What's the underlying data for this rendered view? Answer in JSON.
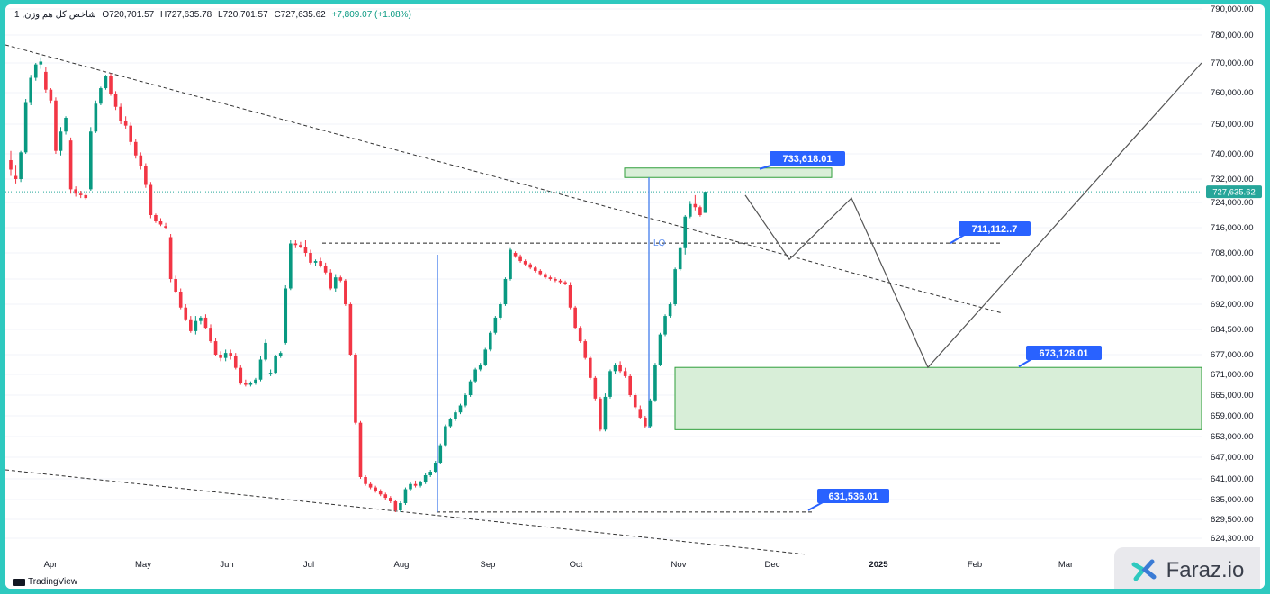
{
  "header": {
    "symbol": "شاخص کل هم وزن, 1",
    "open": "O720,701.57",
    "high": "H727,635.78",
    "low": "L720,701.57",
    "close": "C727,635.62",
    "change": "+7,809.07 (+1.08%)"
  },
  "branding": {
    "tradingview": "TradingView",
    "faraz": "Faraz.io"
  },
  "colors": {
    "up": "#089981",
    "down": "#f23645",
    "zone_fill": "#d8eed8",
    "zone_border": "#2e9e3a",
    "label_bg": "#2962ff",
    "vline": "#5b8def",
    "last_price_line": "#26a69a"
  },
  "chart_data": {
    "type": "candlestick",
    "y_axis_ticks": [
      {
        "value": 790000,
        "label": "790,000.00"
      },
      {
        "value": 780000,
        "label": "780,000.00"
      },
      {
        "value": 770000,
        "label": "770,000.00"
      },
      {
        "value": 760000,
        "label": "760,000.00"
      },
      {
        "value": 750000,
        "label": "750,000.00"
      },
      {
        "value": 740000,
        "label": "740,000.00"
      },
      {
        "value": 732000,
        "label": "732,000.00"
      },
      {
        "value": 724000,
        "label": "724,000.00"
      },
      {
        "value": 716000,
        "label": "716,000.00"
      },
      {
        "value": 708000,
        "label": "708,000.00"
      },
      {
        "value": 700000,
        "label": "700,000.00"
      },
      {
        "value": 692000,
        "label": "692,000.00"
      },
      {
        "value": 684500,
        "label": "684,500.00"
      },
      {
        "value": 677000,
        "label": "677,000.00"
      },
      {
        "value": 671000,
        "label": "671,000.00"
      },
      {
        "value": 665000,
        "label": "665,000.00"
      },
      {
        "value": 659000,
        "label": "659,000.00"
      },
      {
        "value": 653000,
        "label": "653,000.00"
      },
      {
        "value": 647000,
        "label": "647,000.00"
      },
      {
        "value": 641000,
        "label": "641,000.00"
      },
      {
        "value": 635000,
        "label": "635,000.00"
      },
      {
        "value": 629500,
        "label": "629,500.00"
      },
      {
        "value": 624300,
        "label": "624,300.00"
      }
    ],
    "x_axis_labels": [
      "Apr",
      "May",
      "Jun",
      "Jul",
      "Aug",
      "Sep",
      "Oct",
      "Nov",
      "Dec",
      "2025",
      "Feb",
      "Mar"
    ],
    "candles": [
      {
        "o": 738000,
        "h": 741000,
        "l": 733000,
        "c": 735000
      },
      {
        "o": 733000,
        "h": 736500,
        "l": 730500,
        "c": 732000
      },
      {
        "o": 732000,
        "h": 741000,
        "l": 731000,
        "c": 740500
      },
      {
        "o": 740500,
        "h": 758000,
        "l": 740000,
        "c": 757000
      },
      {
        "o": 757000,
        "h": 766000,
        "l": 756000,
        "c": 765000
      },
      {
        "o": 765000,
        "h": 770000,
        "l": 764000,
        "c": 769500
      },
      {
        "o": 769500,
        "h": 772000,
        "l": 768000,
        "c": 770500
      },
      {
        "o": 767000,
        "h": 768500,
        "l": 760000,
        "c": 761000
      },
      {
        "o": 761000,
        "h": 761500,
        "l": 756500,
        "c": 757500
      },
      {
        "o": 757500,
        "h": 758500,
        "l": 740000,
        "c": 741000
      },
      {
        "o": 741000,
        "h": 749000,
        "l": 739500,
        "c": 747500
      },
      {
        "o": 747500,
        "h": 752500,
        "l": 746500,
        "c": 752000
      },
      {
        "o": 744500,
        "h": 745500,
        "l": 727000,
        "c": 728500
      },
      {
        "o": 728500,
        "h": 729500,
        "l": 726000,
        "c": 727000
      },
      {
        "o": 727000,
        "h": 728000,
        "l": 725500,
        "c": 726500
      },
      {
        "o": 726500,
        "h": 727000,
        "l": 725000,
        "c": 725500
      },
      {
        "o": 728500,
        "h": 749000,
        "l": 728000,
        "c": 747500
      },
      {
        "o": 747500,
        "h": 757500,
        "l": 747000,
        "c": 756500
      },
      {
        "o": 756500,
        "h": 762000,
        "l": 756000,
        "c": 761500
      },
      {
        "o": 761500,
        "h": 766000,
        "l": 761000,
        "c": 765500
      },
      {
        "o": 765500,
        "h": 766500,
        "l": 759000,
        "c": 759500
      },
      {
        "o": 759500,
        "h": 760500,
        "l": 754500,
        "c": 755500
      },
      {
        "o": 755500,
        "h": 756500,
        "l": 750000,
        "c": 751000
      },
      {
        "o": 751000,
        "h": 752500,
        "l": 748500,
        "c": 749500
      },
      {
        "o": 749500,
        "h": 750500,
        "l": 743000,
        "c": 744000
      },
      {
        "o": 744000,
        "h": 745000,
        "l": 738500,
        "c": 739500
      },
      {
        "o": 739500,
        "h": 740500,
        "l": 735000,
        "c": 736000
      },
      {
        "o": 736000,
        "h": 737000,
        "l": 729000,
        "c": 730000
      },
      {
        "o": 730000,
        "h": 731000,
        "l": 719000,
        "c": 720000
      },
      {
        "o": 720000,
        "h": 720500,
        "l": 717500,
        "c": 718000
      },
      {
        "o": 718000,
        "h": 719000,
        "l": 716500,
        "c": 717000
      },
      {
        "o": 716500,
        "h": 717500,
        "l": 715500,
        "c": 716000
      },
      {
        "o": 713000,
        "h": 714000,
        "l": 699000,
        "c": 700000
      },
      {
        "o": 700000,
        "h": 701000,
        "l": 695500,
        "c": 696000
      },
      {
        "o": 696000,
        "h": 697000,
        "l": 690500,
        "c": 691000
      },
      {
        "o": 691000,
        "h": 692000,
        "l": 687000,
        "c": 687500
      },
      {
        "o": 687500,
        "h": 688500,
        "l": 683500,
        "c": 684000
      },
      {
        "o": 684000,
        "h": 688500,
        "l": 683000,
        "c": 687000
      },
      {
        "o": 687000,
        "h": 688500,
        "l": 686000,
        "c": 688000
      },
      {
        "o": 688000,
        "h": 689000,
        "l": 684500,
        "c": 685000
      },
      {
        "o": 685000,
        "h": 686000,
        "l": 680500,
        "c": 681000
      },
      {
        "o": 681000,
        "h": 682000,
        "l": 676500,
        "c": 677000
      },
      {
        "o": 677000,
        "h": 678000,
        "l": 675000,
        "c": 676000
      },
      {
        "o": 676000,
        "h": 678500,
        "l": 675000,
        "c": 677500
      },
      {
        "o": 677500,
        "h": 678500,
        "l": 675500,
        "c": 676500
      },
      {
        "o": 676500,
        "h": 677500,
        "l": 672500,
        "c": 673000
      },
      {
        "o": 673000,
        "h": 674000,
        "l": 668000,
        "c": 668500
      },
      {
        "o": 668500,
        "h": 669500,
        "l": 667500,
        "c": 668000
      },
      {
        "o": 668000,
        "h": 669000,
        "l": 667500,
        "c": 668500
      },
      {
        "o": 668500,
        "h": 670000,
        "l": 668000,
        "c": 669500
      },
      {
        "o": 669500,
        "h": 676500,
        "l": 669000,
        "c": 675500
      },
      {
        "o": 675500,
        "h": 681500,
        "l": 675000,
        "c": 680500
      },
      {
        "o": 671000,
        "h": 672500,
        "l": 670500,
        "c": 671500
      },
      {
        "o": 671500,
        "h": 677000,
        "l": 671000,
        "c": 676500
      },
      {
        "o": 676500,
        "h": 678000,
        "l": 676000,
        "c": 677500
      },
      {
        "o": 680500,
        "h": 698000,
        "l": 680000,
        "c": 697000
      },
      {
        "o": 697000,
        "h": 712000,
        "l": 696500,
        "c": 711000
      },
      {
        "o": 711000,
        "h": 712000,
        "l": 709500,
        "c": 710500
      },
      {
        "o": 710500,
        "h": 711500,
        "l": 709500,
        "c": 710000
      },
      {
        "o": 710000,
        "h": 712000,
        "l": 707000,
        "c": 708000
      },
      {
        "o": 708000,
        "h": 709000,
        "l": 704500,
        "c": 705000
      },
      {
        "o": 705000,
        "h": 706000,
        "l": 704000,
        "c": 705500
      },
      {
        "o": 705500,
        "h": 706500,
        "l": 703500,
        "c": 704000
      },
      {
        "o": 704000,
        "h": 705000,
        "l": 701500,
        "c": 702000
      },
      {
        "o": 702000,
        "h": 703000,
        "l": 696500,
        "c": 697000
      },
      {
        "o": 697000,
        "h": 701500,
        "l": 696000,
        "c": 700500
      },
      {
        "o": 700500,
        "h": 701000,
        "l": 699000,
        "c": 699500
      },
      {
        "o": 699500,
        "h": 700000,
        "l": 691500,
        "c": 692000
      },
      {
        "o": 692000,
        "h": 692500,
        "l": 676500,
        "c": 677000
      },
      {
        "o": 677000,
        "h": 677500,
        "l": 656500,
        "c": 657000
      },
      {
        "o": 657000,
        "h": 657500,
        "l": 641000,
        "c": 641500
      },
      {
        "o": 641500,
        "h": 642000,
        "l": 639000,
        "c": 639500
      },
      {
        "o": 639500,
        "h": 640000,
        "l": 638000,
        "c": 638500
      },
      {
        "o": 638500,
        "h": 639000,
        "l": 637000,
        "c": 637500
      },
      {
        "o": 637500,
        "h": 638000,
        "l": 636000,
        "c": 636500
      },
      {
        "o": 636500,
        "h": 637000,
        "l": 635000,
        "c": 635500
      },
      {
        "o": 635500,
        "h": 636000,
        "l": 634000,
        "c": 634500
      },
      {
        "o": 634500,
        "h": 635000,
        "l": 631500,
        "c": 632000
      },
      {
        "o": 632000,
        "h": 634500,
        "l": 631500,
        "c": 634000
      },
      {
        "o": 634000,
        "h": 638500,
        "l": 633500,
        "c": 638000
      },
      {
        "o": 638000,
        "h": 640000,
        "l": 637500,
        "c": 639500
      },
      {
        "o": 639500,
        "h": 640500,
        "l": 638500,
        "c": 639000
      },
      {
        "o": 639000,
        "h": 640500,
        "l": 638500,
        "c": 640000
      },
      {
        "o": 640000,
        "h": 642500,
        "l": 639500,
        "c": 642000
      },
      {
        "o": 642000,
        "h": 643500,
        "l": 641500,
        "c": 643000
      },
      {
        "o": 643000,
        "h": 646000,
        "l": 642500,
        "c": 645500
      },
      {
        "o": 645500,
        "h": 651000,
        "l": 645000,
        "c": 650500
      },
      {
        "o": 650500,
        "h": 656500,
        "l": 650000,
        "c": 656000
      },
      {
        "o": 656000,
        "h": 658500,
        "l": 655500,
        "c": 658000
      },
      {
        "o": 658000,
        "h": 660500,
        "l": 657500,
        "c": 660000
      },
      {
        "o": 660000,
        "h": 662500,
        "l": 659500,
        "c": 662000
      },
      {
        "o": 662000,
        "h": 665500,
        "l": 661500,
        "c": 665000
      },
      {
        "o": 665000,
        "h": 669500,
        "l": 664500,
        "c": 669000
      },
      {
        "o": 669000,
        "h": 673000,
        "l": 668500,
        "c": 672500
      },
      {
        "o": 672500,
        "h": 674500,
        "l": 672000,
        "c": 674000
      },
      {
        "o": 674000,
        "h": 679000,
        "l": 673500,
        "c": 678500
      },
      {
        "o": 678500,
        "h": 684000,
        "l": 678000,
        "c": 683500
      },
      {
        "o": 683500,
        "h": 688500,
        "l": 683000,
        "c": 688000
      },
      {
        "o": 688000,
        "h": 692500,
        "l": 687500,
        "c": 692000
      },
      {
        "o": 692000,
        "h": 700500,
        "l": 691500,
        "c": 700000
      },
      {
        "o": 700000,
        "h": 709500,
        "l": 699500,
        "c": 709000
      },
      {
        "o": 708000,
        "h": 708500,
        "l": 706500,
        "c": 707000
      },
      {
        "o": 707000,
        "h": 707500,
        "l": 705000,
        "c": 705500
      },
      {
        "o": 705500,
        "h": 706000,
        "l": 704000,
        "c": 704500
      },
      {
        "o": 704500,
        "h": 705000,
        "l": 703000,
        "c": 703500
      },
      {
        "o": 703500,
        "h": 704000,
        "l": 702000,
        "c": 702500
      },
      {
        "o": 702500,
        "h": 703000,
        "l": 701000,
        "c": 701500
      },
      {
        "o": 701500,
        "h": 702000,
        "l": 700000,
        "c": 700500
      },
      {
        "o": 700500,
        "h": 701000,
        "l": 699500,
        "c": 700000
      },
      {
        "o": 700000,
        "h": 700500,
        "l": 699000,
        "c": 699500
      },
      {
        "o": 699500,
        "h": 700000,
        "l": 698500,
        "c": 699000
      },
      {
        "o": 699000,
        "h": 699500,
        "l": 698000,
        "c": 698500
      },
      {
        "o": 698000,
        "h": 699000,
        "l": 690500,
        "c": 691000
      },
      {
        "o": 691000,
        "h": 691500,
        "l": 684500,
        "c": 685000
      },
      {
        "o": 685000,
        "h": 685500,
        "l": 680500,
        "c": 681000
      },
      {
        "o": 681000,
        "h": 681500,
        "l": 675500,
        "c": 676000
      },
      {
        "o": 676000,
        "h": 676500,
        "l": 669500,
        "c": 670000
      },
      {
        "o": 670000,
        "h": 670500,
        "l": 663500,
        "c": 664000
      },
      {
        "o": 664000,
        "h": 664500,
        "l": 654500,
        "c": 655000
      },
      {
        "o": 655000,
        "h": 665500,
        "l": 654500,
        "c": 664500
      },
      {
        "o": 664500,
        "h": 672500,
        "l": 664000,
        "c": 672000
      },
      {
        "o": 672000,
        "h": 674500,
        "l": 671000,
        "c": 674000
      },
      {
        "o": 674000,
        "h": 675000,
        "l": 671500,
        "c": 672000
      },
      {
        "o": 672000,
        "h": 673000,
        "l": 670000,
        "c": 670500
      },
      {
        "o": 670500,
        "h": 671000,
        "l": 664500,
        "c": 665000
      },
      {
        "o": 665000,
        "h": 665500,
        "l": 661000,
        "c": 661500
      },
      {
        "o": 661000,
        "h": 662000,
        "l": 658000,
        "c": 658500
      },
      {
        "o": 658500,
        "h": 659000,
        "l": 655500,
        "c": 656000
      },
      {
        "o": 656000,
        "h": 664000,
        "l": 655500,
        "c": 663500
      },
      {
        "o": 663500,
        "h": 674500,
        "l": 663000,
        "c": 674000
      },
      {
        "o": 674000,
        "h": 683500,
        "l": 673500,
        "c": 683000
      },
      {
        "o": 683000,
        "h": 689000,
        "l": 682500,
        "c": 688500
      },
      {
        "o": 688500,
        "h": 692500,
        "l": 688000,
        "c": 692000
      },
      {
        "o": 692000,
        "h": 703500,
        "l": 691500,
        "c": 703000
      },
      {
        "o": 703000,
        "h": 710000,
        "l": 702500,
        "c": 709500
      },
      {
        "o": 709500,
        "h": 720000,
        "l": 707500,
        "c": 719500
      },
      {
        "o": 719500,
        "h": 724500,
        "l": 719000,
        "c": 723500
      },
      {
        "o": 723500,
        "h": 726500,
        "l": 721500,
        "c": 722500
      },
      {
        "o": 722500,
        "h": 723000,
        "l": 719500,
        "c": 720000
      },
      {
        "o": 720701.57,
        "h": 727635.78,
        "l": 720701.57,
        "c": 727635.62
      }
    ],
    "zones": [
      {
        "name": "supply",
        "from": 735500,
        "to": 732500,
        "label": "733,618.01"
      },
      {
        "name": "demand",
        "from": 673128.01,
        "to": 655000,
        "label": "673,128.01"
      }
    ],
    "levels": [
      {
        "name": "liquidity",
        "value": 711112,
        "label": "711,112..7",
        "marker": "LQ"
      },
      {
        "name": "low",
        "value": 631536.01,
        "label": "631,536.01"
      }
    ],
    "last_price": {
      "value": 727635.62,
      "label": "727,635.62"
    },
    "projection": [
      726500,
      706000,
      725500,
      673128.01,
      770000
    ]
  }
}
